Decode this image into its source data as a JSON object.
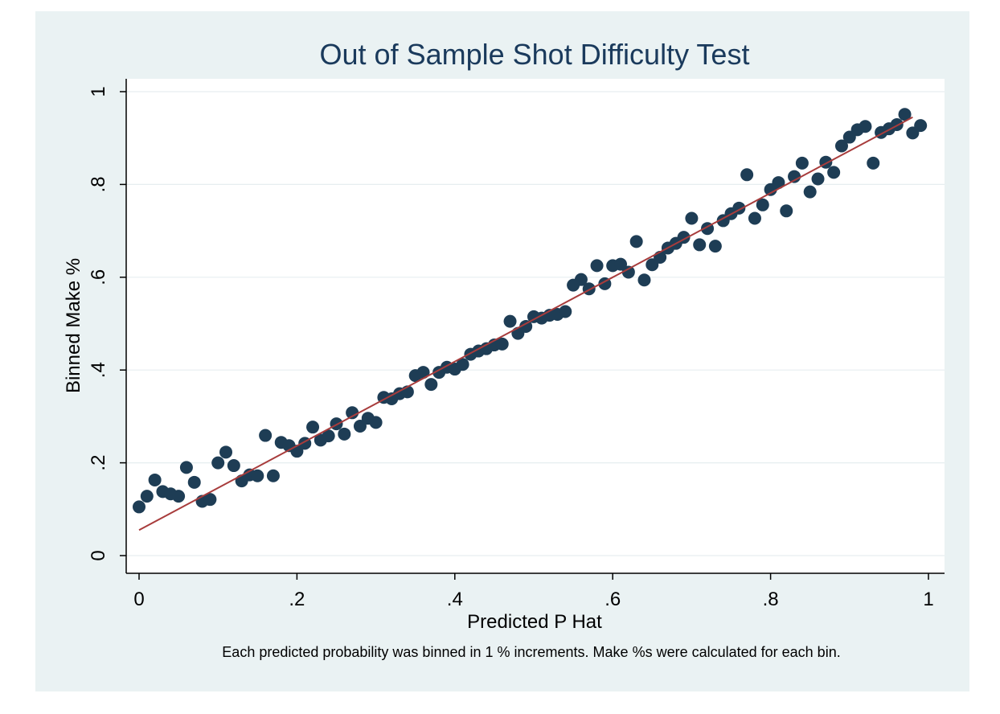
{
  "chart_data": {
    "type": "scatter",
    "title": "Out of Sample Shot Difficulty Test",
    "xlabel": "Predicted P Hat",
    "ylabel": "Binned Make %",
    "note": "Each predicted probability was binned in 1 % increments. Make %s were calculated for each bin.",
    "xlim": [
      0,
      1
    ],
    "ylim": [
      0,
      1
    ],
    "x_ticks": [
      {
        "value": 0,
        "label": "0"
      },
      {
        "value": 0.2,
        "label": ".2"
      },
      {
        "value": 0.4,
        "label": ".4"
      },
      {
        "value": 0.6,
        "label": ".6"
      },
      {
        "value": 0.8,
        "label": ".8"
      },
      {
        "value": 1,
        "label": "1"
      }
    ],
    "y_ticks": [
      {
        "value": 0,
        "label": "0"
      },
      {
        "value": 0.2,
        "label": ".2"
      },
      {
        "value": 0.4,
        "label": ".4"
      },
      {
        "value": 0.6,
        "label": ".6"
      },
      {
        "value": 0.8,
        "label": ".8"
      },
      {
        "value": 1,
        "label": "1"
      }
    ],
    "grid": true,
    "fit_line": {
      "x": [
        0,
        0.98
      ],
      "y": [
        0.055,
        0.945
      ]
    },
    "colors": {
      "marker": "#1e3d55",
      "fit": "#a83c3c",
      "grid": "#ffffff",
      "plot_bg": "#ffffff",
      "figure_bg": "#eaf2f3",
      "title": "#1a3a5c"
    },
    "points": [
      [
        0.0,
        0.105
      ],
      [
        0.01,
        0.128
      ],
      [
        0.02,
        0.163
      ],
      [
        0.03,
        0.138
      ],
      [
        0.04,
        0.133
      ],
      [
        0.05,
        0.128
      ],
      [
        0.06,
        0.19
      ],
      [
        0.07,
        0.158
      ],
      [
        0.08,
        0.117
      ],
      [
        0.09,
        0.121
      ],
      [
        0.1,
        0.2
      ],
      [
        0.11,
        0.223
      ],
      [
        0.12,
        0.194
      ],
      [
        0.13,
        0.161
      ],
      [
        0.14,
        0.174
      ],
      [
        0.15,
        0.172
      ],
      [
        0.16,
        0.259
      ],
      [
        0.17,
        0.172
      ],
      [
        0.18,
        0.244
      ],
      [
        0.19,
        0.237
      ],
      [
        0.2,
        0.225
      ],
      [
        0.21,
        0.242
      ],
      [
        0.22,
        0.277
      ],
      [
        0.23,
        0.249
      ],
      [
        0.24,
        0.258
      ],
      [
        0.25,
        0.284
      ],
      [
        0.26,
        0.262
      ],
      [
        0.27,
        0.308
      ],
      [
        0.28,
        0.279
      ],
      [
        0.29,
        0.296
      ],
      [
        0.3,
        0.287
      ],
      [
        0.31,
        0.341
      ],
      [
        0.32,
        0.338
      ],
      [
        0.33,
        0.349
      ],
      [
        0.34,
        0.353
      ],
      [
        0.35,
        0.388
      ],
      [
        0.36,
        0.395
      ],
      [
        0.37,
        0.369
      ],
      [
        0.38,
        0.395
      ],
      [
        0.39,
        0.406
      ],
      [
        0.4,
        0.402
      ],
      [
        0.41,
        0.412
      ],
      [
        0.42,
        0.434
      ],
      [
        0.43,
        0.441
      ],
      [
        0.44,
        0.446
      ],
      [
        0.45,
        0.454
      ],
      [
        0.46,
        0.456
      ],
      [
        0.47,
        0.505
      ],
      [
        0.48,
        0.479
      ],
      [
        0.49,
        0.494
      ],
      [
        0.5,
        0.515
      ],
      [
        0.51,
        0.512
      ],
      [
        0.52,
        0.518
      ],
      [
        0.53,
        0.52
      ],
      [
        0.54,
        0.526
      ],
      [
        0.55,
        0.583
      ],
      [
        0.56,
        0.595
      ],
      [
        0.57,
        0.575
      ],
      [
        0.58,
        0.625
      ],
      [
        0.59,
        0.586
      ],
      [
        0.6,
        0.625
      ],
      [
        0.61,
        0.628
      ],
      [
        0.62,
        0.611
      ],
      [
        0.63,
        0.677
      ],
      [
        0.64,
        0.594
      ],
      [
        0.65,
        0.627
      ],
      [
        0.66,
        0.643
      ],
      [
        0.67,
        0.663
      ],
      [
        0.68,
        0.673
      ],
      [
        0.69,
        0.686
      ],
      [
        0.7,
        0.727
      ],
      [
        0.71,
        0.67
      ],
      [
        0.72,
        0.705
      ],
      [
        0.73,
        0.667
      ],
      [
        0.74,
        0.722
      ],
      [
        0.75,
        0.737
      ],
      [
        0.76,
        0.749
      ],
      [
        0.77,
        0.821
      ],
      [
        0.78,
        0.727
      ],
      [
        0.79,
        0.756
      ],
      [
        0.8,
        0.789
      ],
      [
        0.81,
        0.804
      ],
      [
        0.82,
        0.743
      ],
      [
        0.83,
        0.817
      ],
      [
        0.84,
        0.846
      ],
      [
        0.85,
        0.784
      ],
      [
        0.86,
        0.812
      ],
      [
        0.87,
        0.848
      ],
      [
        0.88,
        0.826
      ],
      [
        0.89,
        0.883
      ],
      [
        0.9,
        0.902
      ],
      [
        0.91,
        0.918
      ],
      [
        0.92,
        0.925
      ],
      [
        0.93,
        0.846
      ],
      [
        0.94,
        0.912
      ],
      [
        0.95,
        0.92
      ],
      [
        0.96,
        0.929
      ],
      [
        0.97,
        0.951
      ],
      [
        0.98,
        0.911
      ],
      [
        0.99,
        0.927
      ]
    ]
  }
}
